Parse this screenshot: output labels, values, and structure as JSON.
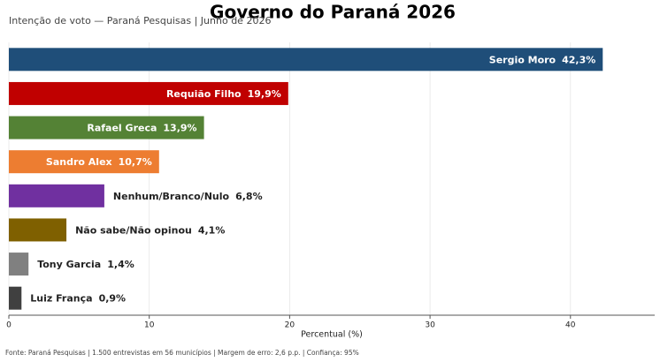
{
  "chart_data": {
    "type": "barh",
    "title": "Governo do Paraná 2026",
    "subtitle": "Intenção de voto — Paraná Pesquisas | Junho de 2026",
    "categories": [
      "Sergio Moro",
      "Requião Filho",
      "Rafael Greca",
      "Sandro Alex",
      "Nenhum/Branco/Nulo",
      "Não sabe/Não opinou",
      "Tony Garcia",
      "Luiz França"
    ],
    "values": [
      42.3,
      19.9,
      13.9,
      10.7,
      6.8,
      4.1,
      1.4,
      0.9
    ],
    "value_labels": [
      "42,3%",
      "19,9%",
      "13,9%",
      "10,7%",
      "6,8%",
      "4,1%",
      "1,4%",
      "0,9%"
    ],
    "colors": [
      "#1f4e79",
      "#c00000",
      "#548235",
      "#ed7d31",
      "#7030a0",
      "#7f6000",
      "#808080",
      "#404040"
    ],
    "xlim": [
      0,
      46
    ],
    "xticks": [
      0,
      10,
      20,
      30,
      40
    ],
    "xlabel": "Percentual (%)",
    "grid": true,
    "source": "Fonte: Paraná Pesquisas | 1.500 entrevistas em 56 municípios | Margem de erro: 2,6 p.p. | Confiança: 95%"
  }
}
